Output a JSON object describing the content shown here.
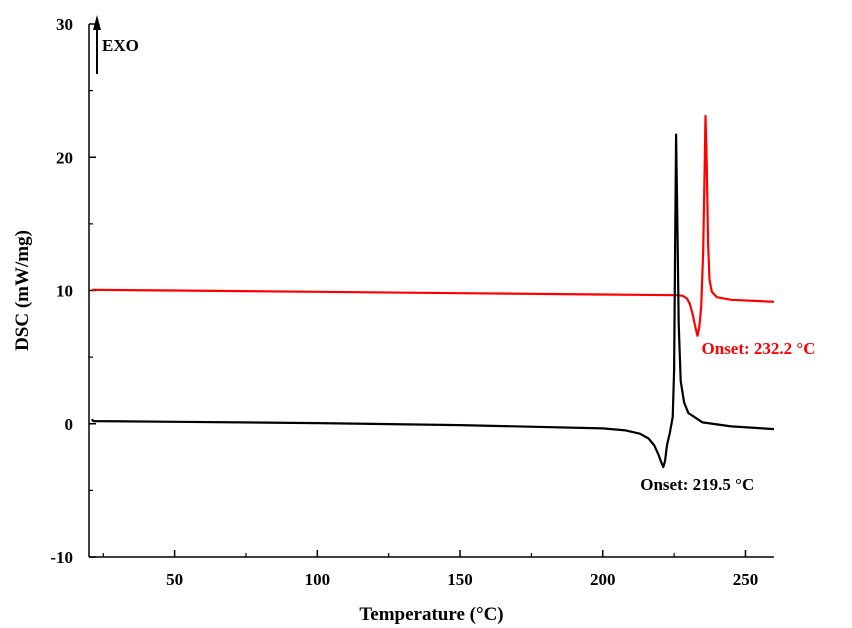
{
  "chart_data": {
    "type": "line",
    "xlabel": "Temperature (°C)",
    "ylabel": "DSC (mW/mg)",
    "xlim": [
      20,
      260
    ],
    "ylim": [
      -10,
      30
    ],
    "x_ticks": [
      50,
      100,
      150,
      200,
      250
    ],
    "y_ticks": [
      -10,
      0,
      10,
      20,
      30
    ],
    "exo_label": "EXO",
    "grid": false,
    "series": [
      {
        "color": "#ff0000",
        "annotation": "Onset: 232.2 °C",
        "points": [
          [
            21,
            10.05
          ],
          [
            50,
            10.0
          ],
          [
            100,
            9.9
          ],
          [
            150,
            9.8
          ],
          [
            200,
            9.7
          ],
          [
            226,
            9.65
          ],
          [
            228,
            9.6
          ],
          [
            229.5,
            9.4
          ],
          [
            230.5,
            9.0
          ],
          [
            231.5,
            8.2
          ],
          [
            232.5,
            7.2
          ],
          [
            233.2,
            6.6
          ],
          [
            233.8,
            7.2
          ],
          [
            234.5,
            8.8
          ],
          [
            235.2,
            13.0
          ],
          [
            235.7,
            19.0
          ],
          [
            236.0,
            23.1
          ],
          [
            236.4,
            20.0
          ],
          [
            236.9,
            13.5
          ],
          [
            237.4,
            10.8
          ],
          [
            238.2,
            9.9
          ],
          [
            240,
            9.5
          ],
          [
            245,
            9.3
          ],
          [
            260,
            9.15
          ]
        ]
      },
      {
        "color": "#000000",
        "annotation": "Onset: 219.5 °C",
        "points": [
          [
            21,
            0.35
          ],
          [
            21.5,
            0.2
          ],
          [
            50,
            0.15
          ],
          [
            100,
            0.05
          ],
          [
            150,
            -0.1
          ],
          [
            200,
            -0.35
          ],
          [
            208,
            -0.5
          ],
          [
            213,
            -0.75
          ],
          [
            216,
            -1.1
          ],
          [
            218,
            -1.6
          ],
          [
            219.5,
            -2.3
          ],
          [
            220.5,
            -2.9
          ],
          [
            221.2,
            -3.25
          ],
          [
            221.8,
            -2.8
          ],
          [
            222.5,
            -1.6
          ],
          [
            223.5,
            -0.7
          ],
          [
            224.5,
            0.5
          ],
          [
            225.0,
            4.0
          ],
          [
            225.4,
            14.0
          ],
          [
            225.7,
            21.7
          ],
          [
            226.1,
            16.0
          ],
          [
            226.6,
            7.5
          ],
          [
            227.3,
            3.2
          ],
          [
            228.5,
            1.6
          ],
          [
            230,
            0.8
          ],
          [
            235,
            0.1
          ],
          [
            245,
            -0.2
          ],
          [
            260,
            -0.4
          ]
        ]
      }
    ]
  }
}
